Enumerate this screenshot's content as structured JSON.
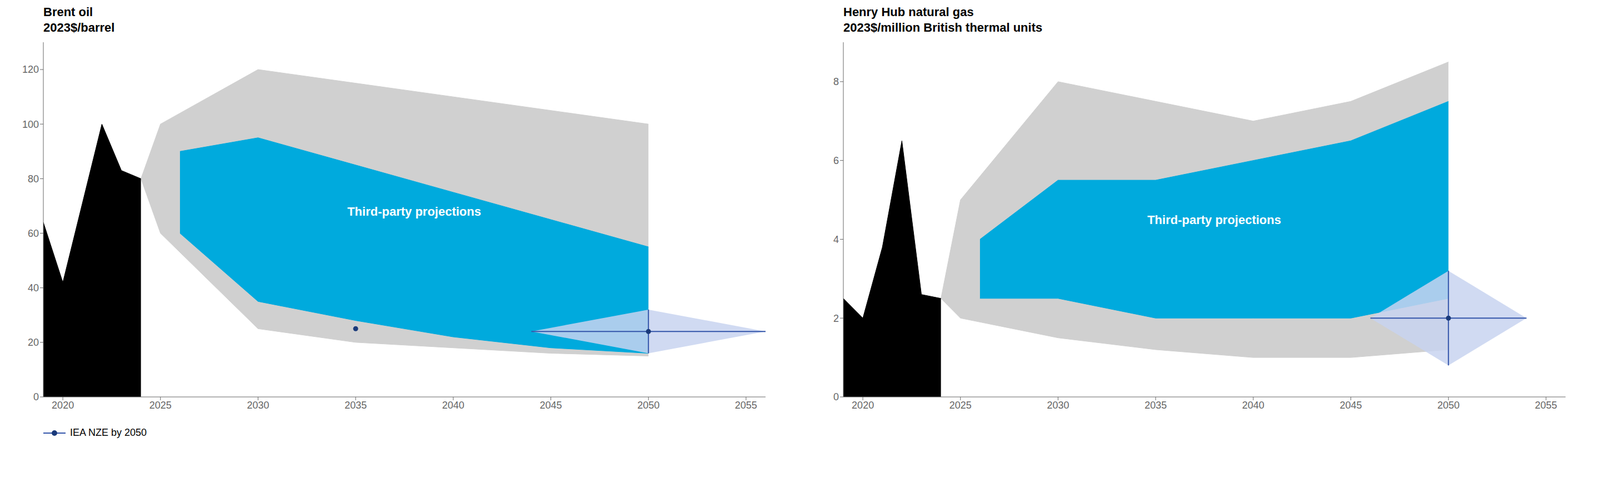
{
  "chart_data": [
    {
      "type": "area",
      "title": "Brent oil",
      "subtitle": "2023$/barrel",
      "xlim": [
        2019,
        2056
      ],
      "xticks": [
        2020,
        2025,
        2030,
        2035,
        2040,
        2045,
        2050,
        2055
      ],
      "ylim": [
        0,
        130
      ],
      "yticks": [
        0,
        20,
        40,
        60,
        80,
        100,
        120
      ],
      "legend": "bottom",
      "series": [
        {
          "type": "range_area",
          "color": "#d0d0d0",
          "x": [
            2024,
            2025,
            2030,
            2035,
            2040,
            2045,
            2050
          ],
          "top": [
            80,
            100,
            120,
            115,
            110,
            105,
            100
          ],
          "bottom": [
            80,
            60,
            25,
            20,
            18,
            16,
            15
          ]
        },
        {
          "type": "range_area",
          "color": "#00aadd",
          "x": [
            2026,
            2030,
            2035,
            2040,
            2045,
            2050
          ],
          "top": [
            90,
            95,
            85,
            75,
            65,
            55
          ],
          "bottom": [
            60,
            35,
            28,
            22,
            18,
            16
          ]
        },
        {
          "type": "area",
          "color": "#000000",
          "x": [
            2019,
            2020,
            2021,
            2022,
            2023,
            2024
          ],
          "values": [
            64,
            42,
            71,
            100,
            83,
            80
          ]
        },
        {
          "type": "diamond",
          "name": "IEA NZE by 2050",
          "colors": [
            "#c8d4f0",
            "#3355aa",
            "#1a3a7a"
          ],
          "x": [
            2050
          ],
          "values": [
            24
          ],
          "x_error": [
            6
          ],
          "y_error": [
            8
          ]
        },
        {
          "type": "scatter",
          "color": "#1a3a7a",
          "x": [
            2035
          ],
          "values": [
            25
          ]
        }
      ],
      "annotations": [
        {
          "text": "Third-party projections",
          "x": 2038,
          "y": 68,
          "color": "#ffffff"
        }
      ]
    },
    {
      "type": "area",
      "title": "Henry Hub natural gas",
      "subtitle": "2023$/million British thermal units",
      "xlim": [
        2019,
        2056
      ],
      "xticks": [
        2020,
        2025,
        2030,
        2035,
        2040,
        2045,
        2050,
        2055
      ],
      "ylim": [
        0,
        9
      ],
      "yticks": [
        0,
        2,
        4,
        6,
        8
      ],
      "series": [
        {
          "type": "range_area",
          "color": "#d0d0d0",
          "x": [
            2024,
            2025,
            2030,
            2035,
            2040,
            2045,
            2050
          ],
          "top": [
            2.5,
            5.0,
            8.0,
            7.5,
            7.0,
            7.5,
            8.5
          ],
          "bottom": [
            2.5,
            2.0,
            1.5,
            1.2,
            1.0,
            1.0,
            1.2
          ]
        },
        {
          "type": "range_area",
          "color": "#00aadd",
          "x": [
            2026,
            2030,
            2035,
            2040,
            2045,
            2050
          ],
          "top": [
            4.0,
            5.5,
            5.5,
            6.0,
            6.5,
            7.5
          ],
          "bottom": [
            2.5,
            2.5,
            2.0,
            2.0,
            2.0,
            2.5
          ]
        },
        {
          "type": "area",
          "color": "#000000",
          "x": [
            2019,
            2020,
            2021,
            2022,
            2023,
            2024
          ],
          "values": [
            2.5,
            2.0,
            3.8,
            6.5,
            2.6,
            2.5
          ]
        },
        {
          "type": "diamond",
          "colors": [
            "#c8d4f0",
            "#3355aa",
            "#1a3a7a"
          ],
          "x": [
            2050
          ],
          "values": [
            2.0
          ],
          "x_error": [
            4
          ],
          "y_error": [
            1.2
          ]
        }
      ],
      "annotations": [
        {
          "text": "Third-party projections",
          "x": 2038,
          "y": 4.5,
          "color": "#ffffff"
        }
      ]
    }
  ]
}
